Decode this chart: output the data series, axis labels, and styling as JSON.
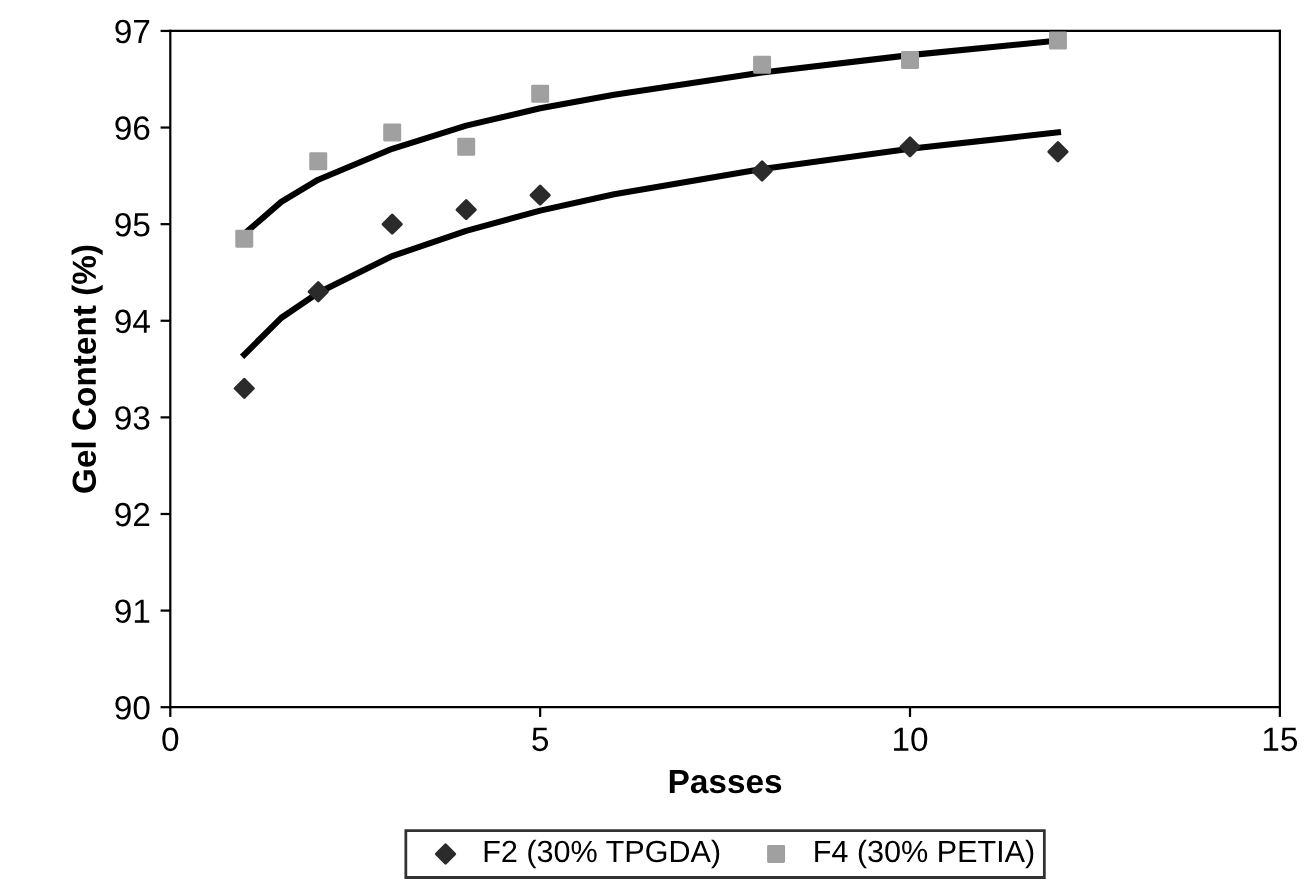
{
  "chart_data": {
    "type": "scatter",
    "xlabel": "Passes",
    "ylabel": "Gel Content (%)",
    "xlim": [
      0,
      15
    ],
    "xticks": [
      0,
      5,
      10,
      15
    ],
    "ylim": [
      90,
      97
    ],
    "yticks": [
      90,
      91,
      92,
      93,
      94,
      95,
      96,
      97
    ],
    "grid": false,
    "legend": "bottom",
    "series": [
      {
        "name": "F2 (30% TPGDA)",
        "color": "#2b2b2b",
        "marker": "diamond",
        "x": [
          1,
          2,
          3,
          4,
          5,
          8,
          10,
          12
        ],
        "values": [
          93.3,
          94.3,
          95.0,
          95.15,
          95.3,
          95.55,
          95.8,
          95.75
        ]
      },
      {
        "name": "F4 (30% PETIA)",
        "color": "#a0a0a0",
        "marker": "square",
        "x": [
          1,
          2,
          3,
          4,
          5,
          8,
          10,
          12
        ],
        "values": [
          94.85,
          95.65,
          95.95,
          95.8,
          96.35,
          96.65,
          96.7,
          96.9
        ]
      },
      {
        "type": "line",
        "color": "#000000",
        "marker": "none",
        "x": [
          1,
          1.5,
          2,
          3,
          4,
          5,
          6,
          8,
          10,
          12
        ],
        "values": [
          93.65,
          94.03,
          94.29,
          94.67,
          94.93,
          95.14,
          95.31,
          95.57,
          95.78,
          95.95
        ]
      },
      {
        "type": "line",
        "color": "#000000",
        "marker": "none",
        "x": [
          1,
          1.5,
          2,
          3,
          4,
          5,
          6,
          8,
          10,
          12
        ],
        "values": [
          94.9,
          95.23,
          95.46,
          95.78,
          96.02,
          96.2,
          96.34,
          96.57,
          96.75,
          96.9
        ]
      }
    ]
  }
}
